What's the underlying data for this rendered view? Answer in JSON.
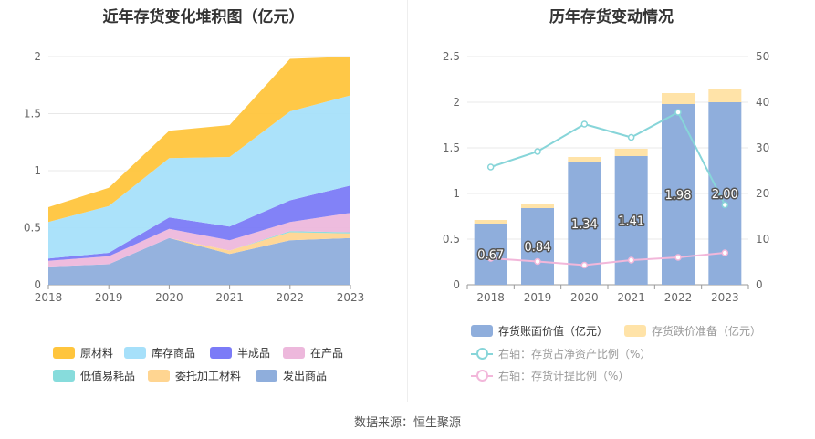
{
  "left_chart": {
    "title": "近年存货变化堆积图（亿元）",
    "legend": [
      {
        "label": "原材料",
        "color": "#FFC53D"
      },
      {
        "label": "库存商品",
        "color": "#A6E0FA"
      },
      {
        "label": "半成品",
        "color": "#7B7BF7"
      },
      {
        "label": "在产品",
        "color": "#EDB8DC"
      },
      {
        "label": "低值易耗品",
        "color": "#87DCDC"
      },
      {
        "label": "委托加工材料",
        "color": "#FFD591"
      },
      {
        "label": "发出商品",
        "color": "#8FAEDC"
      }
    ]
  },
  "right_chart": {
    "title": "历年存货变动情况",
    "legend": [
      {
        "label": "存货账面价值（亿元）",
        "color": "#8FAEDC"
      },
      {
        "label": "存货跌价准备（亿元）",
        "color": "#FFE3A8"
      },
      {
        "label": "右轴：存货占净资产比例（%）",
        "color": "#87D5D9"
      },
      {
        "label": "右轴：存货计提比例（%）",
        "color": "#F2B7DA"
      }
    ]
  },
  "source": "数据来源：恒生聚源",
  "chart_data": [
    {
      "type": "area",
      "stacked": true,
      "title": "近年存货变化堆积图（亿元）",
      "x": [
        "2018",
        "2019",
        "2020",
        "2021",
        "2022",
        "2023"
      ],
      "ylim": [
        0,
        2
      ],
      "yticks": [
        0,
        0.5,
        1,
        1.5,
        2
      ],
      "series": [
        {
          "name": "发出商品",
          "color": "#8FAEDC",
          "values": [
            0.16,
            0.18,
            0.41,
            0.27,
            0.39,
            0.41
          ]
        },
        {
          "name": "委托加工材料",
          "color": "#FFD591",
          "values": [
            0.0,
            0.0,
            0.0,
            0.03,
            0.07,
            0.04
          ]
        },
        {
          "name": "低值易耗品",
          "color": "#87DCDC",
          "values": [
            0.0,
            0.0,
            0.0,
            0.0,
            0.01,
            0.01
          ]
        },
        {
          "name": "在产品",
          "color": "#EDB8DC",
          "values": [
            0.05,
            0.07,
            0.08,
            0.09,
            0.08,
            0.17
          ]
        },
        {
          "name": "半成品",
          "color": "#7B7BF7",
          "values": [
            0.02,
            0.03,
            0.1,
            0.12,
            0.19,
            0.24
          ]
        },
        {
          "name": "库存商品",
          "color": "#A6E0FA",
          "values": [
            0.32,
            0.41,
            0.52,
            0.61,
            0.78,
            0.79
          ]
        },
        {
          "name": "原材料",
          "color": "#FFC53D",
          "values": [
            0.13,
            0.16,
            0.24,
            0.28,
            0.46,
            0.34
          ]
        }
      ]
    },
    {
      "type": "bar",
      "stacked": true,
      "title": "历年存货变动情况",
      "categories": [
        "2018",
        "2019",
        "2020",
        "2021",
        "2022",
        "2023"
      ],
      "ylim": [
        0,
        2.5
      ],
      "yticks": [
        0,
        0.5,
        1,
        1.5,
        2,
        2.5
      ],
      "y2lim": [
        0,
        50
      ],
      "y2ticks": [
        0,
        10,
        20,
        30,
        40,
        50
      ],
      "series": [
        {
          "name": "存货账面价值（亿元）",
          "color": "#8FAEDC",
          "axis": "left",
          "values": [
            0.67,
            0.84,
            1.34,
            1.41,
            1.98,
            2.0
          ],
          "labels": [
            "0.67",
            "0.84",
            "1.34",
            "1.41",
            "1.98",
            "2.00"
          ]
        },
        {
          "name": "存货跌价准备（亿元）",
          "color": "#FFE3A8",
          "axis": "left",
          "values": [
            0.04,
            0.05,
            0.06,
            0.08,
            0.12,
            0.15
          ]
        },
        {
          "name": "右轴：存货占净资产比例（%）",
          "color": "#87D5D9",
          "axis": "right",
          "type": "line",
          "values": [
            25.8,
            29.2,
            35.2,
            32.3,
            37.8,
            17.5
          ]
        },
        {
          "name": "右轴：存货计提比例（%）",
          "color": "#F2B7DA",
          "axis": "right",
          "type": "line",
          "values": [
            5.8,
            5.1,
            4.3,
            5.4,
            6.0,
            7.0
          ]
        }
      ]
    }
  ]
}
